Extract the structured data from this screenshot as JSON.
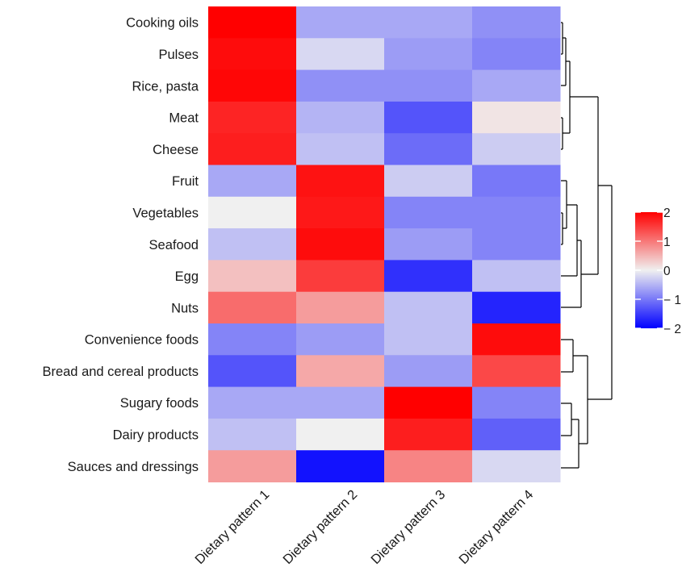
{
  "chart_data": {
    "type": "heatmap",
    "rows": [
      "Cooking oils",
      "Pulses",
      "Rice, pasta",
      "Meat",
      "Cheese",
      "Fruit",
      "Vegetables",
      "Seafood",
      "Egg",
      "Nuts",
      "Convenience foods",
      "Bread and cereal products",
      "Sugary foods",
      "Dairy products",
      "Sauces and dressings"
    ],
    "columns": [
      "Dietary pattern 1",
      "Dietary pattern 2",
      "Dietary pattern 3",
      "Dietary pattern 4"
    ],
    "values": [
      [
        2.0,
        -0.6,
        -0.6,
        -0.8
      ],
      [
        1.9,
        -0.2,
        -0.7,
        -0.9
      ],
      [
        1.95,
        -0.8,
        -0.8,
        -0.6
      ],
      [
        1.7,
        -0.5,
        -1.3,
        0.1
      ],
      [
        1.75,
        -0.4,
        -1.1,
        -0.3
      ],
      [
        -0.6,
        1.85,
        -0.3,
        -1.0
      ],
      [
        0.0,
        1.8,
        -0.9,
        -0.9
      ],
      [
        -0.4,
        1.9,
        -0.7,
        -0.9
      ],
      [
        0.4,
        1.5,
        -1.6,
        -0.4
      ],
      [
        1.1,
        0.7,
        -0.4,
        -1.7
      ],
      [
        -0.9,
        -0.7,
        -0.4,
        1.9
      ],
      [
        -1.3,
        0.6,
        -0.7,
        1.4
      ],
      [
        -0.6,
        -0.6,
        2.0,
        -0.9
      ],
      [
        -0.4,
        0.0,
        1.75,
        -1.2
      ],
      [
        0.7,
        -1.85,
        0.9,
        -0.2
      ]
    ],
    "color_scale": {
      "min": -2,
      "mid": 0,
      "max": 2,
      "low_color": "#0000ff",
      "mid_color": "#f0f0f0",
      "high_color": "#ff0000"
    },
    "legend": {
      "ticks": [
        2,
        1,
        0,
        -1,
        -2
      ],
      "tick_labels": [
        "2",
        "1",
        "0",
        "− 1",
        "− 2"
      ],
      "position": "right"
    },
    "row_dendrogram": "right",
    "title": "",
    "xlabel": "",
    "ylabel": ""
  }
}
